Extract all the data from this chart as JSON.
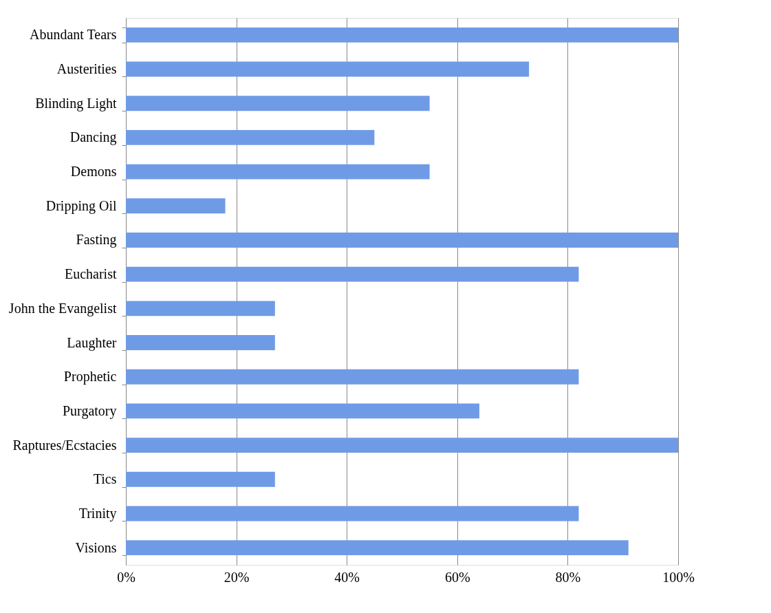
{
  "chart_data": {
    "type": "bar",
    "orientation": "horizontal",
    "categories": [
      "Abundant Tears",
      "Austerities",
      "Blinding Light",
      "Dancing",
      "Demons",
      "Dripping Oil",
      "Fasting",
      "Eucharist",
      "John the Evangelist",
      "Laughter",
      "Prophetic",
      "Purgatory",
      "Raptures/Ecstacies",
      "Tics",
      "Trinity",
      "Visions"
    ],
    "values": [
      100,
      73,
      55,
      45,
      55,
      18,
      100,
      82,
      27,
      27,
      82,
      64,
      100,
      27,
      82,
      91
    ],
    "color": "#6f9be6",
    "xlim": [
      0,
      100
    ],
    "xticks": [
      {
        "value": 0,
        "label": "0%"
      },
      {
        "value": 20,
        "label": "20%"
      },
      {
        "value": 40,
        "label": "40%"
      },
      {
        "value": 60,
        "label": "60%"
      },
      {
        "value": 80,
        "label": "80%"
      },
      {
        "value": 100,
        "label": "100%"
      }
    ],
    "grid": "x"
  }
}
